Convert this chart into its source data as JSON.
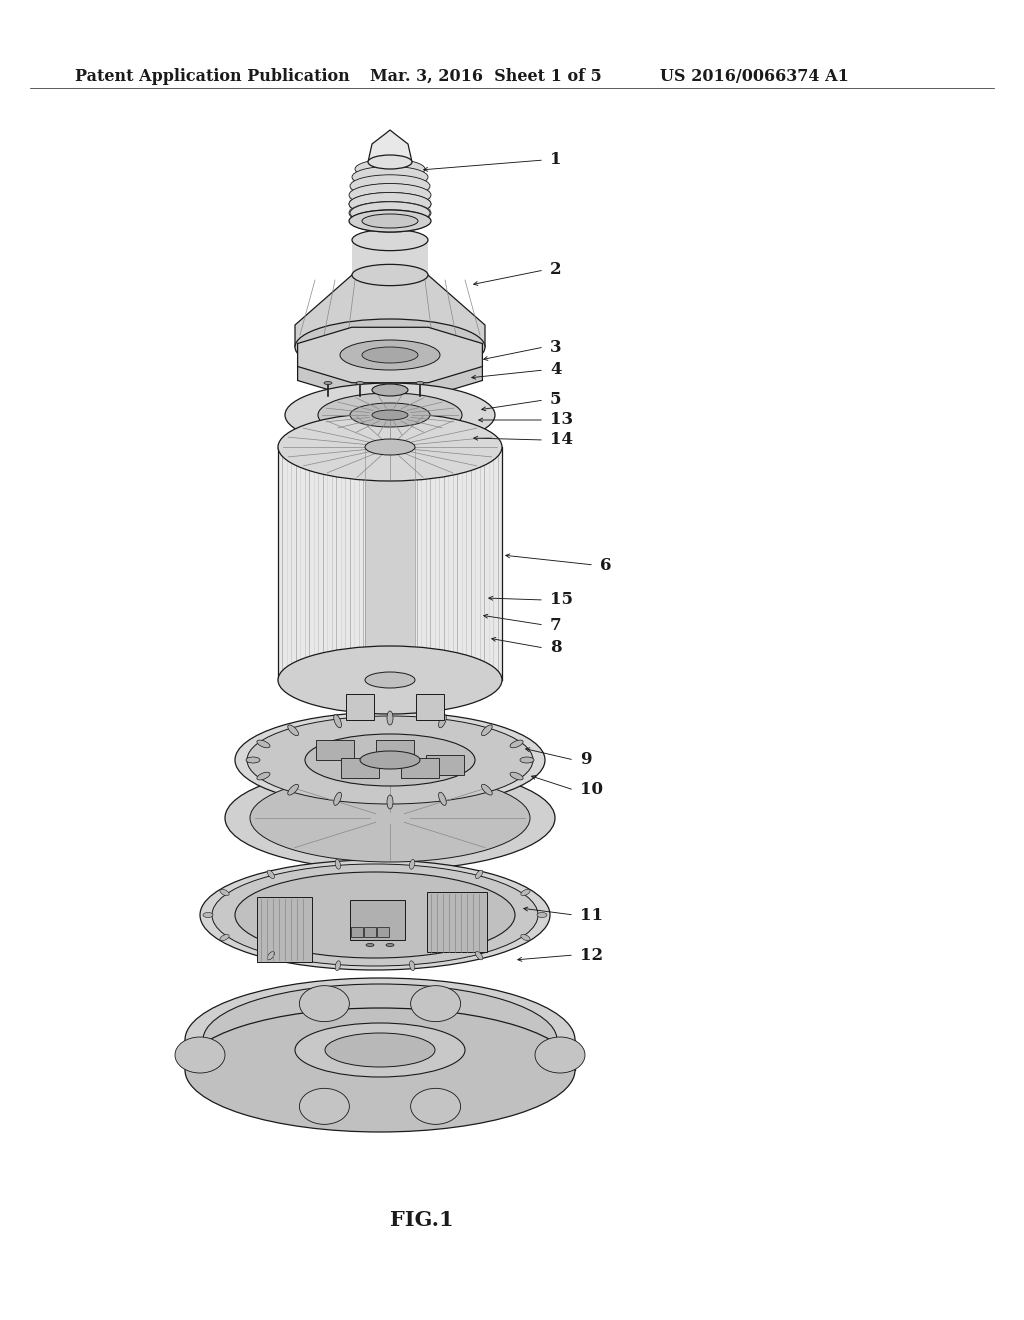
{
  "background_color": "#ffffff",
  "header_left": "Patent Application Publication",
  "header_mid": "Mar. 3, 2016  Sheet 1 of 5",
  "header_right": "US 2016/0066374 A1",
  "caption": "FIG.1",
  "header_fontsize": 11.5,
  "caption_fontsize": 15,
  "page_width": 10.24,
  "page_height": 13.2,
  "dpi": 100,
  "label_fontsize": 12
}
